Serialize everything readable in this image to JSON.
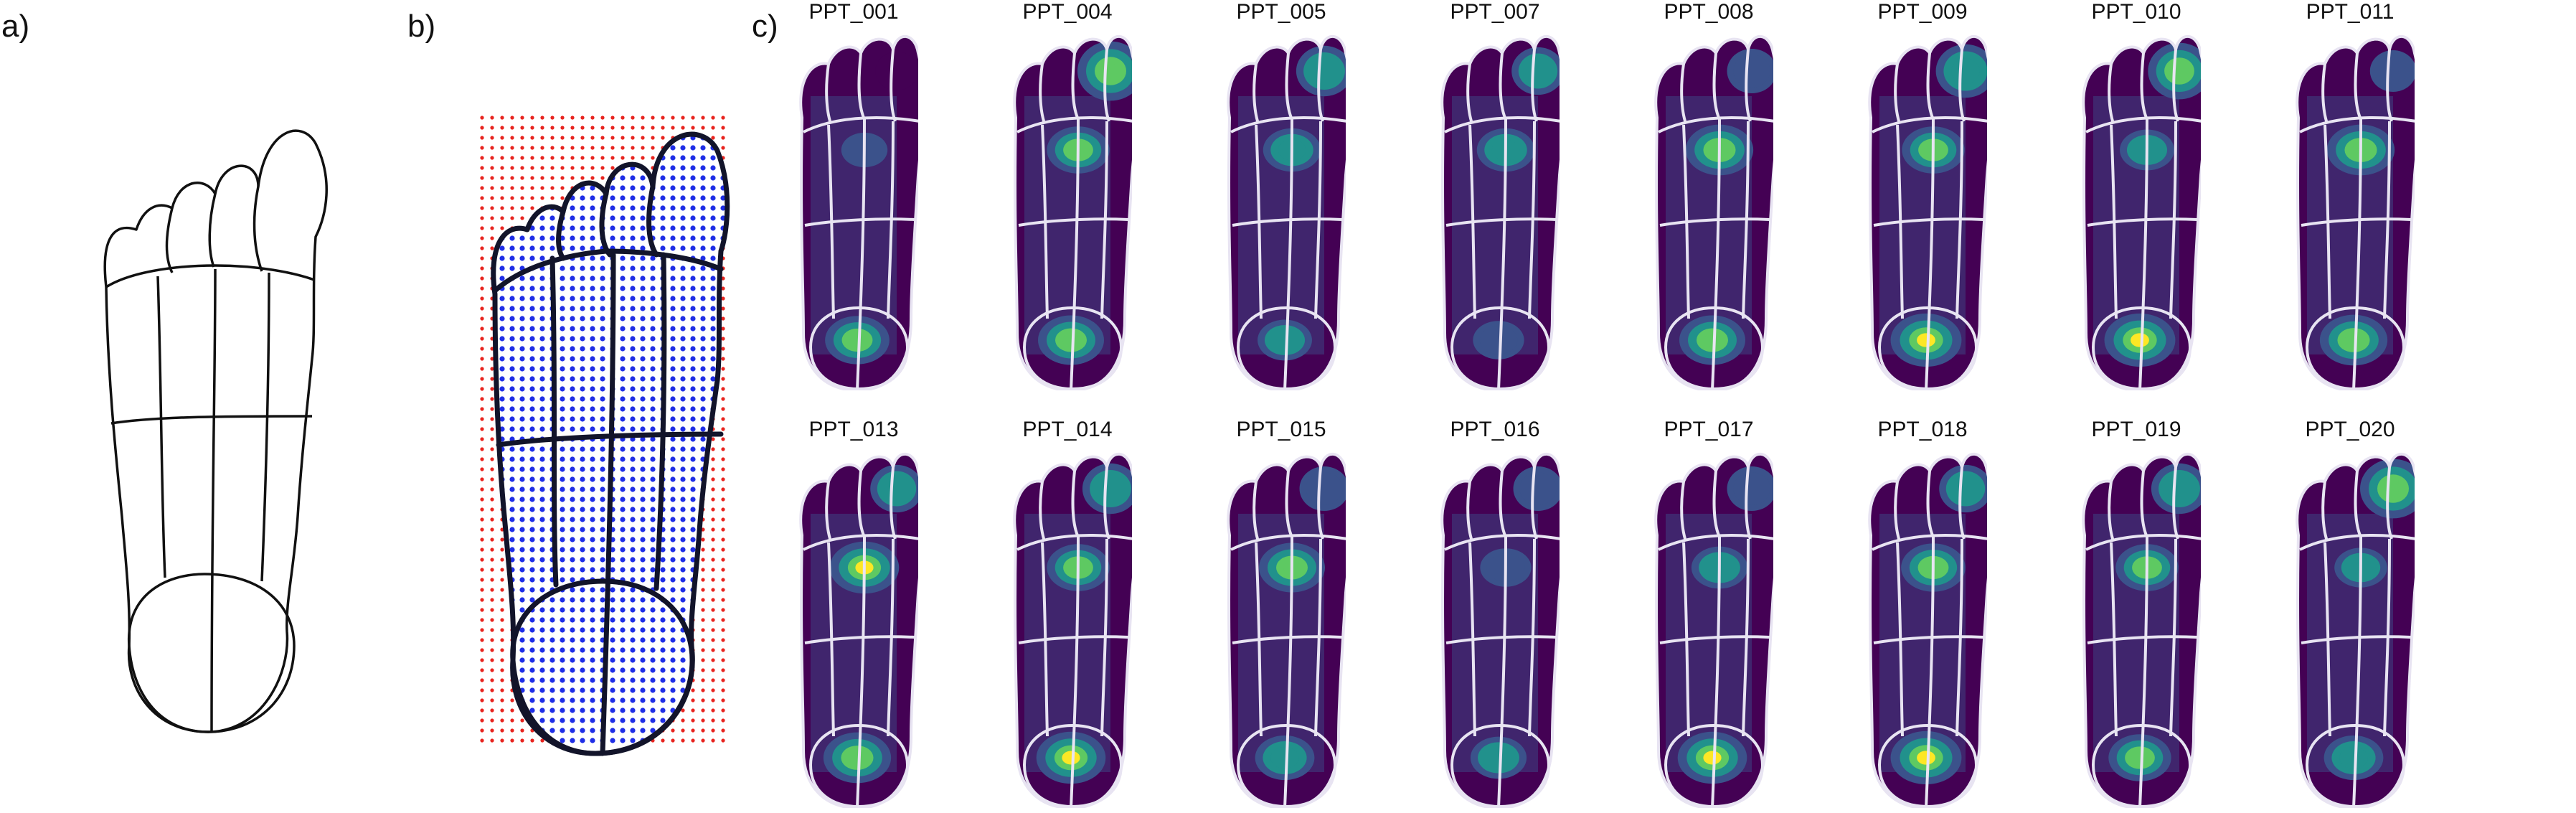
{
  "panel_labels": {
    "a": "a)",
    "b": "b)",
    "c": "c)"
  },
  "colors": {
    "outline_black": "#111111",
    "grid_outside": "#e8231e",
    "grid_inside": "#1f2ee6",
    "region_lines_on_heatmap": "#e8e4f2",
    "heatmap_background": "#440154",
    "heatmap_low": "#3b528b",
    "heatmap_mid": "#21918c",
    "heatmap_high": "#5ec962",
    "heatmap_peak": "#fde725"
  },
  "participants": [
    {
      "id": "PPT_001",
      "hotspots": [
        [
          "heel",
          0.75
        ],
        [
          "met",
          0.2
        ],
        [
          "toe",
          0.1
        ]
      ]
    },
    {
      "id": "PPT_004",
      "hotspots": [
        [
          "met",
          0.7
        ],
        [
          "heel",
          0.8
        ],
        [
          "toe",
          0.8
        ]
      ]
    },
    {
      "id": "PPT_005",
      "hotspots": [
        [
          "met",
          0.55
        ],
        [
          "heel",
          0.45
        ],
        [
          "toe",
          0.5
        ]
      ]
    },
    {
      "id": "PPT_007",
      "hotspots": [
        [
          "met",
          0.55
        ],
        [
          "heel",
          0.35
        ],
        [
          "toe",
          0.4
        ]
      ]
    },
    {
      "id": "PPT_008",
      "hotspots": [
        [
          "met",
          0.85
        ],
        [
          "heel",
          0.8
        ],
        [
          "toe",
          0.3
        ]
      ]
    },
    {
      "id": "PPT_009",
      "hotspots": [
        [
          "met",
          0.7
        ],
        [
          "heel",
          0.95
        ],
        [
          "toe",
          0.6
        ]
      ]
    },
    {
      "id": "PPT_010",
      "hotspots": [
        [
          "met",
          0.45
        ],
        [
          "heel",
          0.95
        ],
        [
          "toe",
          0.7
        ]
      ]
    },
    {
      "id": "PPT_011",
      "hotspots": [
        [
          "met",
          0.85
        ],
        [
          "heel",
          0.85
        ],
        [
          "toe",
          0.2
        ]
      ]
    },
    {
      "id": "PPT_013",
      "hotspots": [
        [
          "met",
          0.9
        ],
        [
          "heel",
          0.85
        ],
        [
          "toe",
          0.4
        ]
      ]
    },
    {
      "id": "PPT_014",
      "hotspots": [
        [
          "met",
          0.7
        ],
        [
          "heel",
          0.9
        ],
        [
          "toe",
          0.5
        ]
      ]
    },
    {
      "id": "PPT_015",
      "hotspots": [
        [
          "met",
          0.8
        ],
        [
          "heel",
          0.6
        ],
        [
          "toe",
          0.3
        ]
      ]
    },
    {
      "id": "PPT_016",
      "hotspots": [
        [
          "met",
          0.35
        ],
        [
          "heel",
          0.5
        ],
        [
          "toe",
          0.3
        ]
      ]
    },
    {
      "id": "PPT_017",
      "hotspots": [
        [
          "met",
          0.5
        ],
        [
          "heel",
          0.9
        ],
        [
          "toe",
          0.3
        ]
      ]
    },
    {
      "id": "PPT_018",
      "hotspots": [
        [
          "met",
          0.75
        ],
        [
          "heel",
          0.95
        ],
        [
          "toe",
          0.4
        ]
      ]
    },
    {
      "id": "PPT_019",
      "hotspots": [
        [
          "met",
          0.7
        ],
        [
          "heel",
          0.7
        ],
        [
          "toe",
          0.5
        ]
      ]
    },
    {
      "id": "PPT_020",
      "hotspots": [
        [
          "met",
          0.4
        ],
        [
          "heel",
          0.6
        ],
        [
          "toe",
          0.8
        ]
      ]
    }
  ]
}
